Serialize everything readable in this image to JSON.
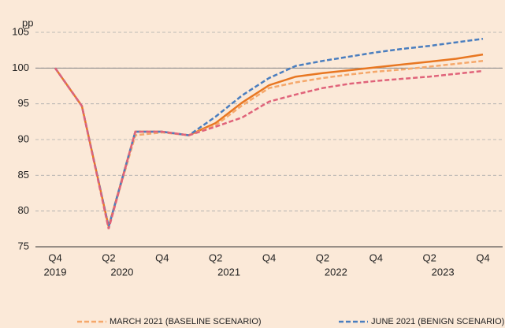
{
  "chart_data": {
    "type": "line",
    "y_unit": "pp",
    "categories": [
      "Q4",
      null,
      "Q2",
      null,
      "Q4",
      null,
      "Q2",
      null,
      "Q4",
      null,
      "Q2",
      null,
      "Q4",
      null,
      "Q2",
      null,
      "Q4"
    ],
    "years": [
      "2019",
      "2020",
      "2021",
      "2022",
      "2023"
    ],
    "series": [
      {
        "color": "#e87722",
        "dash": "solid",
        "values": [
          100,
          94.7,
          77.8,
          91.1,
          91.1,
          90.6,
          92.3,
          95.2,
          97.6,
          98.8,
          99.3,
          99.7,
          100.1,
          100.5,
          100.9,
          101.3,
          101.9
        ]
      },
      {
        "name": "MARCH 2021 (BASELINE SCENARIO)",
        "color": "#f5a86b",
        "dash": "dashed",
        "values": [
          100,
          94.7,
          77.8,
          90.6,
          91.0,
          90.6,
          92.0,
          94.8,
          97.2,
          98.0,
          98.6,
          99.1,
          99.5,
          99.8,
          100.2,
          100.6,
          101.0
        ]
      },
      {
        "name": "JUNE 2021 (BENIGN SCENARIO)",
        "color": "#4a7ebf",
        "dash": "dashed",
        "values": [
          100,
          94.7,
          77.8,
          91.1,
          91.1,
          90.6,
          93.2,
          96.2,
          98.6,
          100.3,
          101.0,
          101.6,
          102.2,
          102.7,
          103.1,
          103.6,
          104.1
        ]
      },
      {
        "color": "#e0637a",
        "dash": "dashed",
        "values": [
          100,
          94.7,
          77.5,
          91.1,
          91.1,
          90.6,
          91.8,
          93.1,
          95.3,
          96.3,
          97.2,
          97.8,
          98.2,
          98.5,
          98.8,
          99.2,
          99.6
        ]
      }
    ],
    "reference_value": 100,
    "ylim": [
      75,
      105
    ],
    "yticks": [
      75,
      80,
      85,
      90,
      95,
      100,
      105
    ],
    "grid": true
  }
}
